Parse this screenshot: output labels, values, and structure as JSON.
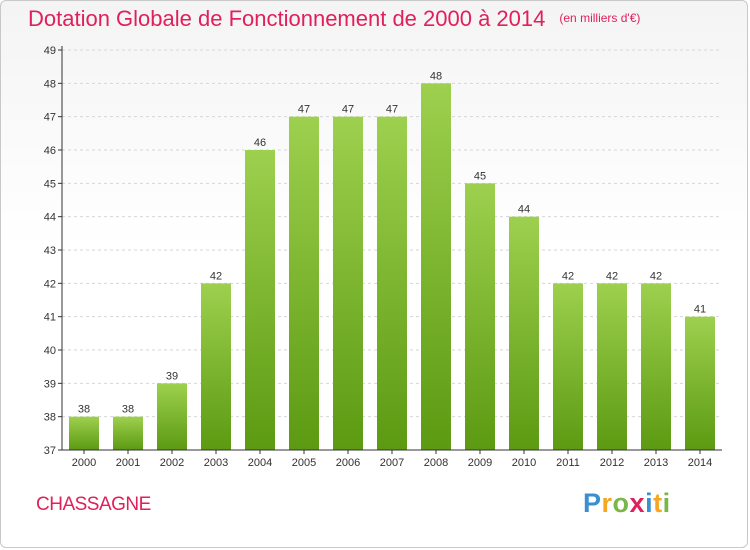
{
  "header": {
    "title": "Dotation Globale de Fonctionnement de 2000 à 2014",
    "subtitle": "(en milliers d'€)"
  },
  "footer": {
    "commune": "CHASSAGNE",
    "brand_letters": [
      {
        "ch": "P",
        "color": "#3a8fd0"
      },
      {
        "ch": "r",
        "color": "#f5a623"
      },
      {
        "ch": "o",
        "color": "#7ab648"
      },
      {
        "ch": "x",
        "color": "#e0205c"
      },
      {
        "ch": "i",
        "color": "#3a8fd0"
      },
      {
        "ch": "t",
        "color": "#f5a623"
      },
      {
        "ch": "i",
        "color": "#7ab648"
      }
    ]
  },
  "colors": {
    "accent": "#e0205c",
    "bar_top": "#9dd04e",
    "bar_bottom": "#5c9a12",
    "axis": "#333333",
    "grid": "#d6d6d6"
  },
  "chart_data": {
    "type": "bar",
    "categories": [
      "2000",
      "2001",
      "2002",
      "2003",
      "2004",
      "2005",
      "2006",
      "2007",
      "2008",
      "2009",
      "2010",
      "2011",
      "2012",
      "2013",
      "2014"
    ],
    "values": [
      38,
      38,
      39,
      42,
      46,
      47,
      47,
      47,
      48,
      45,
      44,
      42,
      42,
      42,
      41
    ],
    "ylim": [
      37,
      49
    ],
    "yticks": [
      37,
      38,
      39,
      40,
      41,
      42,
      43,
      44,
      45,
      46,
      47,
      48,
      49
    ],
    "grid": true,
    "legend": "none"
  }
}
